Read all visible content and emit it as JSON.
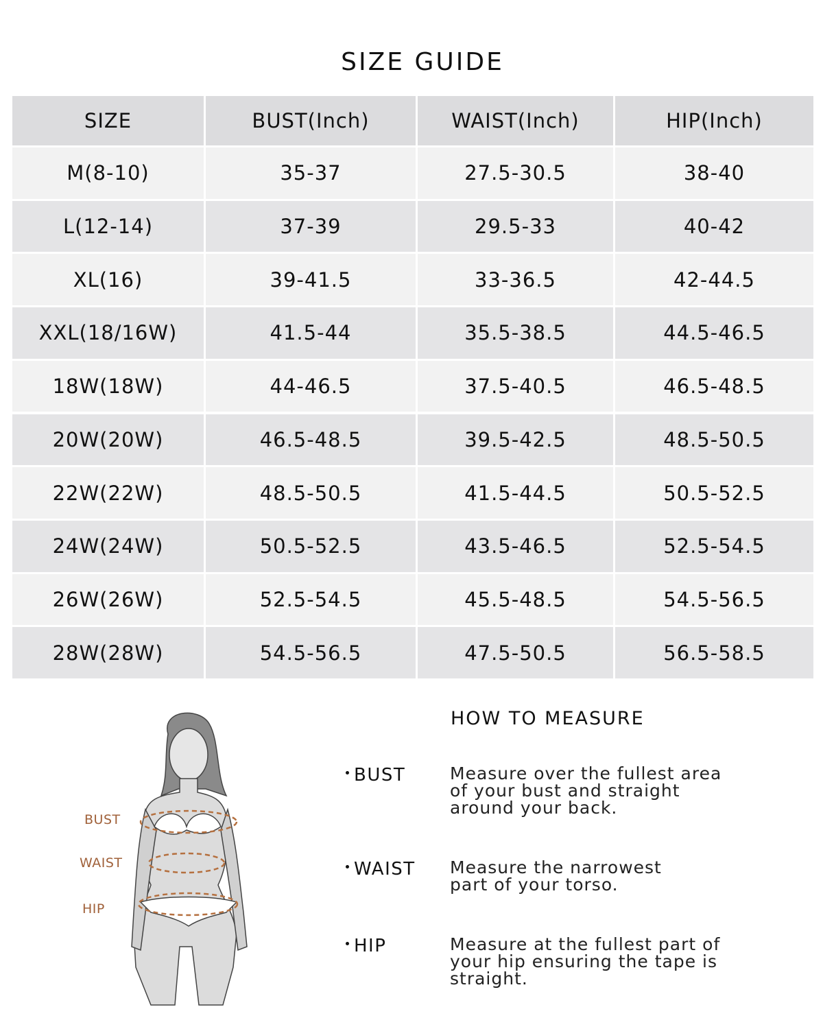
{
  "title": "SIZE GUIDE",
  "table": {
    "header": [
      "SIZE",
      "BUST(Inch)",
      "WAIST(Inch)",
      "HIP(Inch)"
    ],
    "rows": [
      [
        "M(8-10)",
        "35-37",
        "27.5-30.5",
        "38-40"
      ],
      [
        "L(12-14)",
        "37-39",
        "29.5-33",
        "40-42"
      ],
      [
        "XL(16)",
        "39-41.5",
        "33-36.5",
        "42-44.5"
      ],
      [
        "XXL(18/16W)",
        "41.5-44",
        "35.5-38.5",
        "44.5-46.5"
      ],
      [
        "18W(18W)",
        "44-46.5",
        "37.5-40.5",
        "46.5-48.5"
      ],
      [
        "20W(20W)",
        "46.5-48.5",
        "39.5-42.5",
        "48.5-50.5"
      ],
      [
        "22W(22W)",
        "48.5-50.5",
        "41.5-44.5",
        "50.5-52.5"
      ],
      [
        "24W(24W)",
        "50.5-52.5",
        "43.5-46.5",
        "52.5-54.5"
      ],
      [
        "26W(26W)",
        "52.5-54.5",
        "45.5-48.5",
        "54.5-56.5"
      ],
      [
        "28W(28W)",
        "54.5-56.5",
        "47.5-50.5",
        "56.5-58.5"
      ]
    ]
  },
  "figure": {
    "labels": [
      "BUST",
      "WAIST",
      "HIP"
    ]
  },
  "measure": {
    "title": "HOW TO MEASURE",
    "items": [
      {
        "name": "BUST",
        "lines": [
          "Measure over the fullest area",
          "of your bust and straight",
          "around your back."
        ]
      },
      {
        "name": "WAIST",
        "lines": [
          "Measure the narrowest",
          "part of your torso."
        ]
      },
      {
        "name": "HIP",
        "lines": [
          "Measure at the fullest part of",
          "your hip ensuring the tape is",
          "straight."
        ]
      }
    ]
  }
}
